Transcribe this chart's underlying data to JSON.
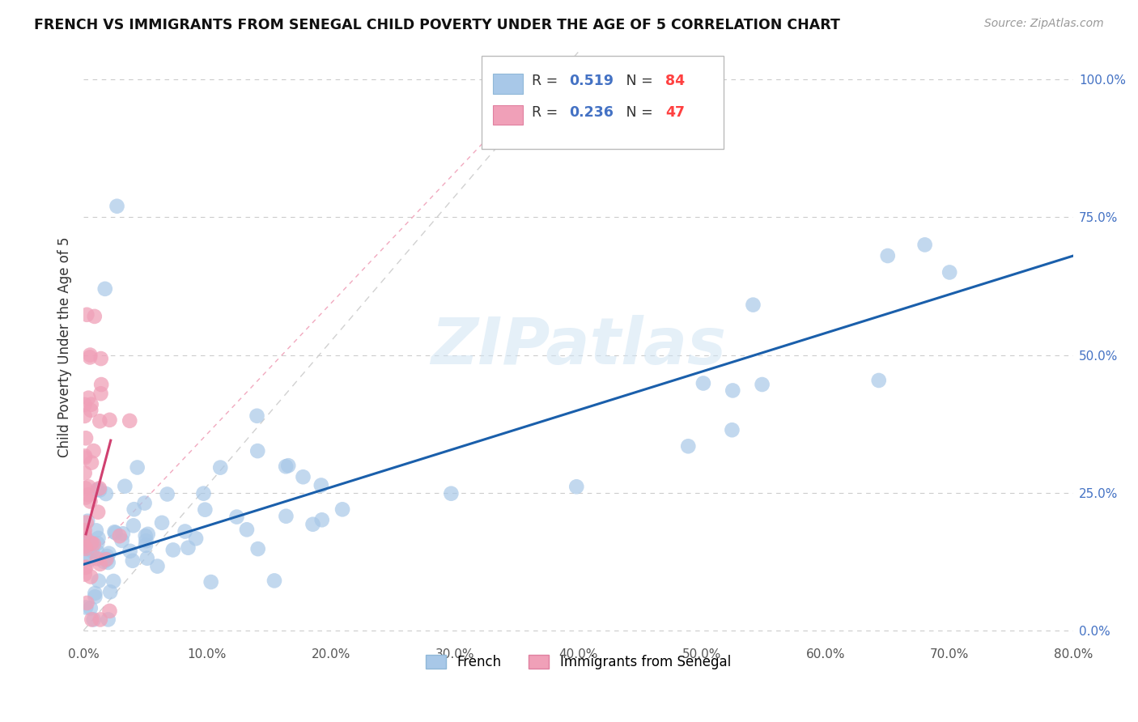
{
  "title": "FRENCH VS IMMIGRANTS FROM SENEGAL CHILD POVERTY UNDER THE AGE OF 5 CORRELATION CHART",
  "source": "Source: ZipAtlas.com",
  "ylabel": "Child Poverty Under the Age of 5",
  "xlim": [
    0.0,
    0.8
  ],
  "ylim": [
    -0.02,
    1.05
  ],
  "xtick_labels": [
    "0.0%",
    "10.0%",
    "20.0%",
    "30.0%",
    "40.0%",
    "50.0%",
    "60.0%",
    "70.0%",
    "80.0%"
  ],
  "xtick_values": [
    0.0,
    0.1,
    0.2,
    0.3,
    0.4,
    0.5,
    0.6,
    0.7,
    0.8
  ],
  "ytick_labels": [
    "0.0%",
    "25.0%",
    "50.0%",
    "75.0%",
    "100.0%"
  ],
  "ytick_values": [
    0.0,
    0.25,
    0.5,
    0.75,
    1.0
  ],
  "french_color": "#A8C8E8",
  "senegal_color": "#F0A0B8",
  "french_line_color": "#1A5FAB",
  "senegal_line_color": "#D04070",
  "french_R": "0.519",
  "french_N": "84",
  "senegal_R": "0.236",
  "senegal_N": "47",
  "legend_french_label": "French",
  "legend_senegal_label": "Immigrants from Senegal",
  "watermark": "ZIPatlas",
  "r_color": "#4472C4",
  "n_color": "#FF4040",
  "legend_box_color": "#DDDDDD",
  "grid_color": "#CCCCCC",
  "diag_color": "#CCCCCC"
}
